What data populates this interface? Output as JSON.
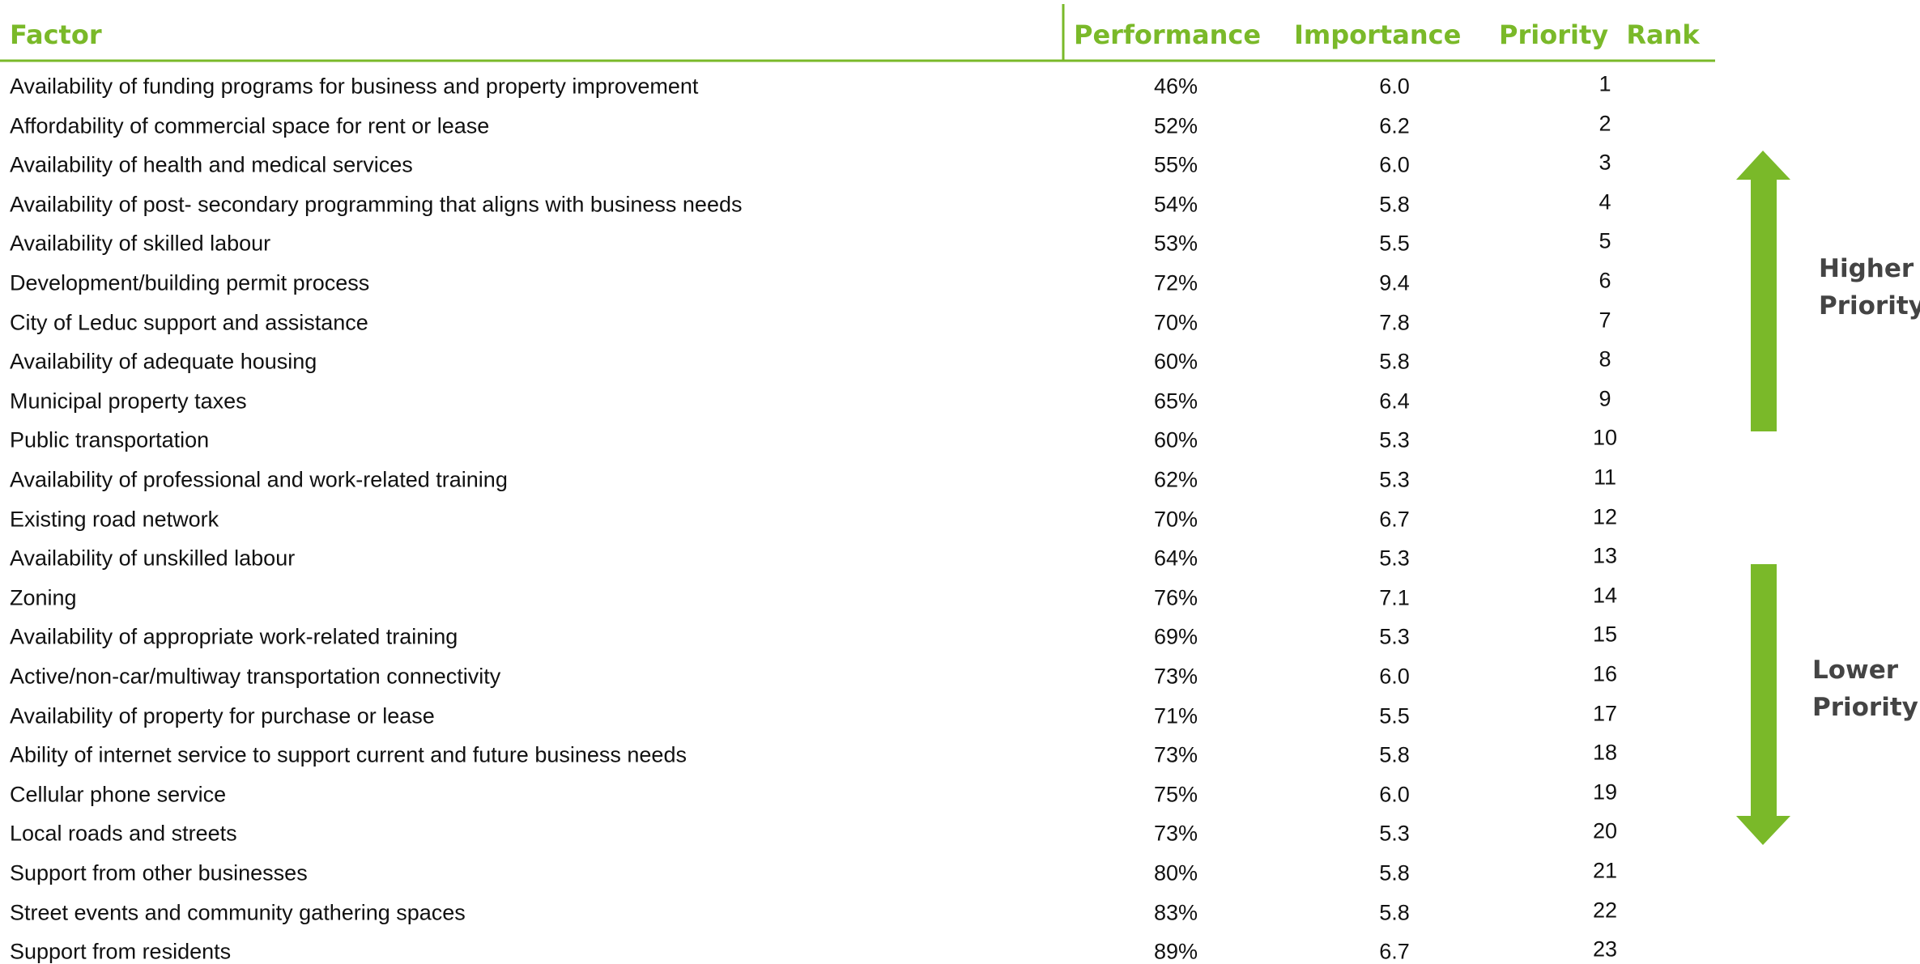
{
  "table": {
    "header": [
      "Factor",
      "Performance",
      "Importance",
      "Priority  Rank"
    ],
    "rows": [
      [
        "Availability of funding programs for business and property improvement",
        "46%",
        "6.0",
        "1"
      ],
      [
        "Affordability of commercial space for rent or lease",
        "52%",
        "6.2",
        "2"
      ],
      [
        "Availability of health and medical services",
        "55%",
        "6.0",
        "3"
      ],
      [
        "Availability of post- secondary programming that aligns with business needs",
        "54%",
        "5.8",
        "4"
      ],
      [
        "Availability of skilled labour",
        "53%",
        "5.5",
        "5"
      ],
      [
        "Development/building permit process",
        "72%",
        "9.4",
        "6"
      ],
      [
        "City of Leduc support and assistance",
        "70%",
        "7.8",
        "7"
      ],
      [
        "Availability of adequate housing",
        "60%",
        "5.8",
        "8"
      ],
      [
        "Municipal property taxes",
        "65%",
        "6.4",
        "9"
      ],
      [
        "Public transportation",
        "60%",
        "5.3",
        "10"
      ],
      [
        "Availability of professional and work-related training",
        "62%",
        "5.3",
        "11"
      ],
      [
        "Existing road network",
        "70%",
        "6.7",
        "12"
      ],
      [
        "Availability of unskilled labour",
        "64%",
        "5.3",
        "13"
      ],
      [
        "Zoning",
        "76%",
        "7.1",
        "14"
      ],
      [
        "Availability of appropriate work-related training",
        "69%",
        "5.3",
        "15"
      ],
      [
        "Active/non-car/multiway transportation connectivity",
        "73%",
        "6.0",
        "16"
      ],
      [
        "Availability of property for purchase or lease",
        "71%",
        "5.5",
        "17"
      ],
      [
        "Ability of internet service to support current and future business needs",
        "73%",
        "5.8",
        "18"
      ],
      [
        "Cellular phone service",
        "75%",
        "6.0",
        "19"
      ],
      [
        "Local roads and streets",
        "73%",
        "5.3",
        "20"
      ],
      [
        "Support from other businesses",
        "80%",
        "5.8",
        "21"
      ],
      [
        "Street events and community gathering spaces",
        "83%",
        "5.8",
        "22"
      ],
      [
        "Support from residents",
        "89%",
        "6.7",
        "23"
      ]
    ]
  },
  "legend": {
    "higher": "Higher Priority",
    "lower": "Lower Priority"
  }
}
